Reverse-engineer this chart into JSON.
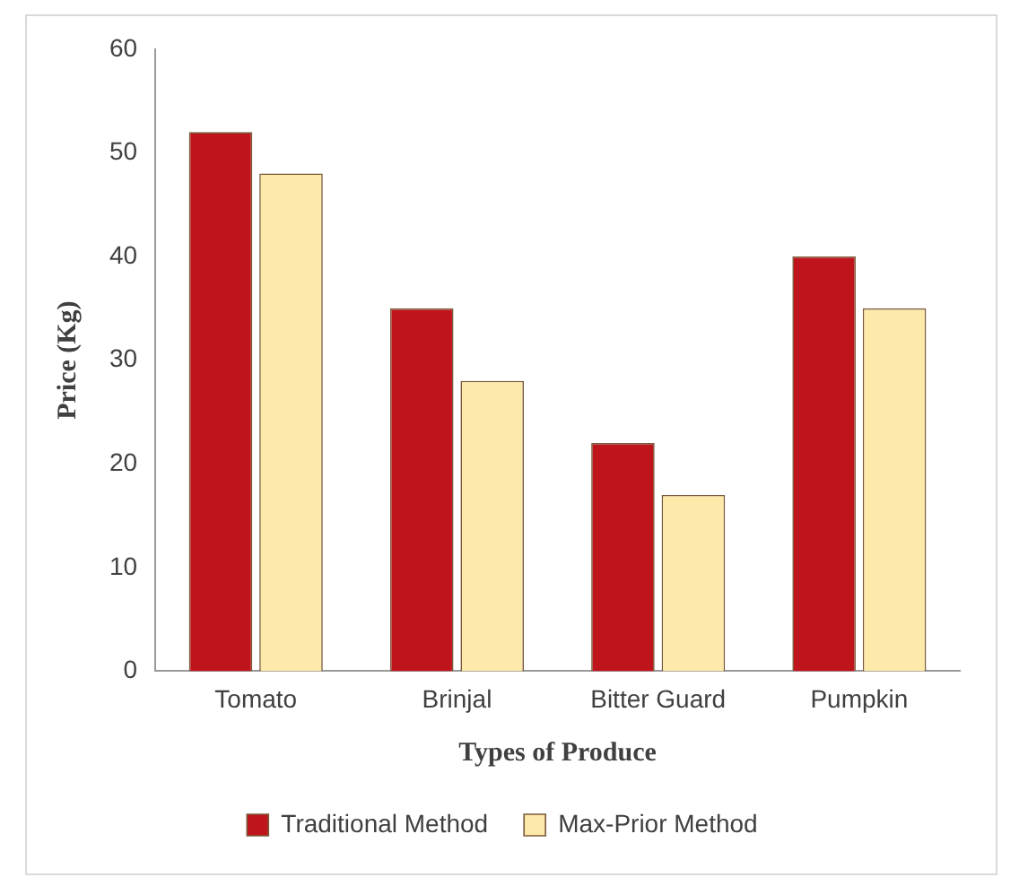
{
  "chart_data": {
    "type": "bar",
    "xlabel": "Types of Produce",
    "ylabel": "Price (Kg)",
    "categories": [
      "Tomato",
      "Brinjal",
      "Bitter Guard",
      "Pumpkin"
    ],
    "series": [
      {
        "name": "Traditional Method",
        "color": "#c0141c",
        "values": [
          52,
          35,
          22,
          40
        ]
      },
      {
        "name": "Max-Prior Method",
        "color": "#fde9a9",
        "values": [
          48,
          28,
          17,
          35
        ]
      }
    ],
    "ylim": [
      0,
      60
    ],
    "yticks": [
      0,
      10,
      20,
      30,
      40,
      50,
      60
    ],
    "grid": false,
    "legend": "bottom"
  }
}
